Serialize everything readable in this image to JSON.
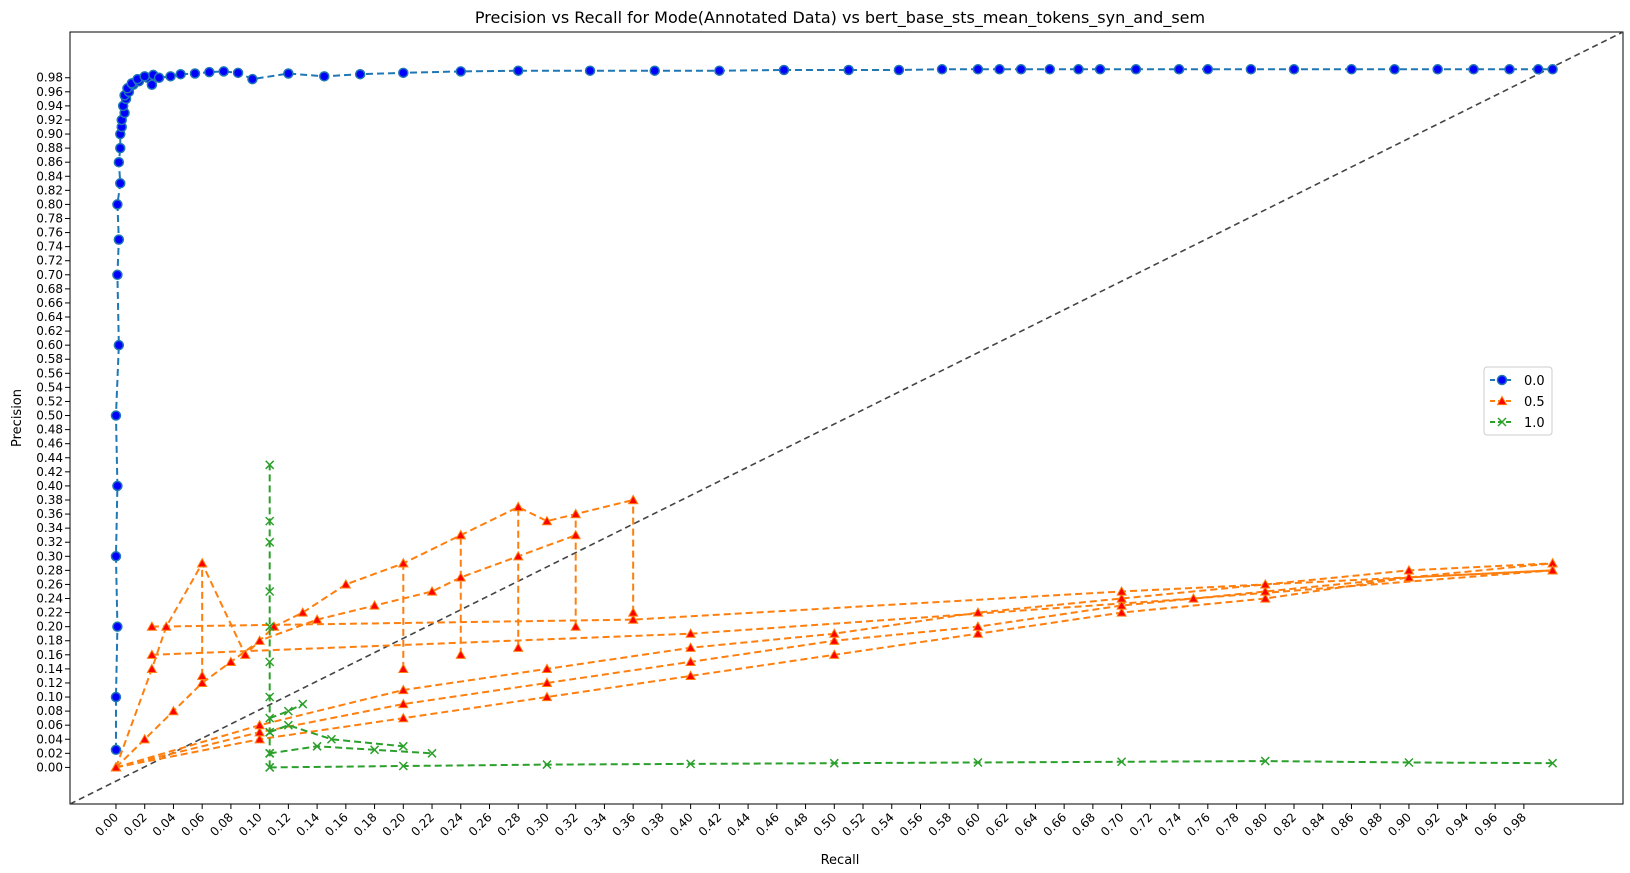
{
  "chart_data": {
    "type": "line",
    "title": "Precision vs Recall for Mode(Annotated Data) vs bert_base_sts_mean_tokens_syn_and_sem",
    "xlabel": "Recall",
    "ylabel": "Precision",
    "xlim": [
      -0.032,
      1.049
    ],
    "ylim": [
      -0.052,
      1.045
    ],
    "xticks": [
      "0.00",
      "0.02",
      "0.04",
      "0.06",
      "0.08",
      "0.10",
      "0.12",
      "0.14",
      "0.16",
      "0.18",
      "0.20",
      "0.22",
      "0.24",
      "0.26",
      "0.28",
      "0.30",
      "0.32",
      "0.34",
      "0.36",
      "0.38",
      "0.40",
      "0.42",
      "0.44",
      "0.46",
      "0.48",
      "0.50",
      "0.52",
      "0.54",
      "0.56",
      "0.58",
      "0.60",
      "0.62",
      "0.64",
      "0.66",
      "0.68",
      "0.70",
      "0.72",
      "0.74",
      "0.76",
      "0.78",
      "0.80",
      "0.82",
      "0.84",
      "0.86",
      "0.88",
      "0.90",
      "0.92",
      "0.94",
      "0.96",
      "0.98"
    ],
    "yticks": [
      "0.00",
      "0.02",
      "0.04",
      "0.06",
      "0.08",
      "0.10",
      "0.12",
      "0.14",
      "0.16",
      "0.18",
      "0.20",
      "0.22",
      "0.24",
      "0.26",
      "0.28",
      "0.30",
      "0.32",
      "0.34",
      "0.36",
      "0.38",
      "0.40",
      "0.42",
      "0.44",
      "0.46",
      "0.48",
      "0.50",
      "0.52",
      "0.54",
      "0.56",
      "0.58",
      "0.60",
      "0.62",
      "0.64",
      "0.66",
      "0.68",
      "0.70",
      "0.72",
      "0.74",
      "0.76",
      "0.78",
      "0.80",
      "0.82",
      "0.84",
      "0.86",
      "0.88",
      "0.90",
      "0.92",
      "0.94",
      "0.96",
      "0.98"
    ],
    "grid": false,
    "legend_position": "right",
    "reference_line": {
      "x": [
        -0.032,
        1.049
      ],
      "y": [
        -0.052,
        1.045
      ],
      "style": "dashed",
      "color": "#444444"
    },
    "series": [
      {
        "name": "0.0",
        "color": "#1f77b4",
        "marker": "circle",
        "marker_face": "#0000ff",
        "x": [
          0.0,
          0.0,
          0.001,
          0.0,
          0.001,
          0.0,
          0.002,
          0.001,
          0.002,
          0.001,
          0.003,
          0.002,
          0.003,
          0.003,
          0.004,
          0.004,
          0.006,
          0.005,
          0.007,
          0.006,
          0.009,
          0.008,
          0.012,
          0.011,
          0.016,
          0.015,
          0.022,
          0.02,
          0.025,
          0.026,
          0.03,
          0.038,
          0.045,
          0.055,
          0.065,
          0.075,
          0.085,
          0.095,
          0.12,
          0.145,
          0.17,
          0.2,
          0.24,
          0.28,
          0.33,
          0.375,
          0.42,
          0.465,
          0.51,
          0.545,
          0.575,
          0.6,
          0.615,
          0.63,
          0.65,
          0.67,
          0.685,
          0.71,
          0.74,
          0.76,
          0.79,
          0.82,
          0.86,
          0.89,
          0.92,
          0.945,
          0.97,
          0.99,
          1.0
        ],
        "y": [
          0.025,
          0.1,
          0.2,
          0.3,
          0.4,
          0.5,
          0.6,
          0.7,
          0.75,
          0.8,
          0.83,
          0.86,
          0.88,
          0.9,
          0.91,
          0.92,
          0.93,
          0.94,
          0.95,
          0.955,
          0.96,
          0.965,
          0.97,
          0.972,
          0.975,
          0.978,
          0.98,
          0.982,
          0.97,
          0.984,
          0.98,
          0.982,
          0.985,
          0.986,
          0.988,
          0.989,
          0.987,
          0.978,
          0.986,
          0.982,
          0.985,
          0.987,
          0.989,
          0.99,
          0.99,
          0.99,
          0.99,
          0.991,
          0.991,
          0.991,
          0.992,
          0.992,
          0.992,
          0.992,
          0.992,
          0.992,
          0.992,
          0.992,
          0.992,
          0.992,
          0.992,
          0.992,
          0.992,
          0.992,
          0.992,
          0.992,
          0.992,
          0.992,
          0.992
        ]
      },
      {
        "name": "0.5",
        "color": "#ff7f0e",
        "marker": "triangle",
        "marker_face": "#ff0000",
        "segments": [
          {
            "x": [
              0.0,
              0.025,
              0.035,
              0.06,
              0.09,
              0.11,
              0.13,
              0.16,
              0.2,
              0.24,
              0.28,
              0.3,
              0.32,
              0.36
            ],
            "y": [
              0.0,
              0.14,
              0.2,
              0.29,
              0.16,
              0.2,
              0.22,
              0.26,
              0.29,
              0.33,
              0.37,
              0.35,
              0.36,
              0.38
            ]
          },
          {
            "x": [
              0.0,
              0.02,
              0.04,
              0.06,
              0.08,
              0.1,
              0.14,
              0.18,
              0.22,
              0.24,
              0.28,
              0.32
            ],
            "y": [
              0.0,
              0.04,
              0.08,
              0.12,
              0.15,
              0.18,
              0.21,
              0.23,
              0.25,
              0.27,
              0.3,
              0.33
            ]
          },
          {
            "x": [
              0.0,
              0.1,
              0.2,
              0.3,
              0.4,
              0.5,
              0.6,
              0.7,
              0.8,
              0.9,
              1.0
            ],
            "y": [
              0.0,
              0.04,
              0.07,
              0.1,
              0.13,
              0.16,
              0.19,
              0.22,
              0.24,
              0.27,
              0.28
            ]
          },
          {
            "x": [
              0.0,
              0.1,
              0.2,
              0.3,
              0.4,
              0.5,
              0.6,
              0.7,
              0.8,
              0.9,
              1.0
            ],
            "y": [
              0.0,
              0.05,
              0.09,
              0.12,
              0.15,
              0.18,
              0.2,
              0.23,
              0.25,
              0.27,
              0.29
            ]
          },
          {
            "x": [
              0.0,
              0.1,
              0.2,
              0.3,
              0.4,
              0.5,
              0.6,
              0.7,
              0.8,
              0.9,
              1.0
            ],
            "y": [
              0.0,
              0.06,
              0.11,
              0.14,
              0.17,
              0.19,
              0.22,
              0.24,
              0.26,
              0.28,
              0.29
            ]
          },
          {
            "x": [
              0.025,
              0.36,
              0.7,
              1.0
            ],
            "y": [
              0.2,
              0.21,
              0.25,
              0.28
            ]
          },
          {
            "x": [
              0.025,
              0.4,
              0.75,
              1.0
            ],
            "y": [
              0.16,
              0.19,
              0.24,
              0.28
            ]
          },
          {
            "x": [
              0.2,
              0.2
            ],
            "y": [
              0.14,
              0.29
            ]
          },
          {
            "x": [
              0.24,
              0.24
            ],
            "y": [
              0.16,
              0.33
            ]
          },
          {
            "x": [
              0.28,
              0.28
            ],
            "y": [
              0.17,
              0.37
            ]
          },
          {
            "x": [
              0.32,
              0.32
            ],
            "y": [
              0.2,
              0.36
            ]
          },
          {
            "x": [
              0.36,
              0.36
            ],
            "y": [
              0.22,
              0.38
            ]
          },
          {
            "x": [
              0.06,
              0.06
            ],
            "y": [
              0.13,
              0.29
            ]
          }
        ]
      },
      {
        "name": "1.0",
        "color": "#2ca02c",
        "marker": "x",
        "marker_face": "#2ca02c",
        "segments": [
          {
            "x": [
              0.107,
              0.107,
              0.107,
              0.107,
              0.107,
              0.107,
              0.107,
              0.107,
              0.107,
              0.107
            ],
            "y": [
              0.0,
              0.02,
              0.05,
              0.1,
              0.15,
              0.2,
              0.25,
              0.32,
              0.35,
              0.43
            ]
          },
          {
            "x": [
              0.107,
              0.2,
              0.3,
              0.4,
              0.5,
              0.6,
              0.7,
              0.8,
              0.9,
              1.0
            ],
            "y": [
              0.0,
              0.002,
              0.004,
              0.005,
              0.006,
              0.007,
              0.008,
              0.009,
              0.007,
              0.006
            ]
          },
          {
            "x": [
              0.107,
              0.14,
              0.18,
              0.22
            ],
            "y": [
              0.02,
              0.03,
              0.025,
              0.02
            ]
          },
          {
            "x": [
              0.107,
              0.12,
              0.15,
              0.2
            ],
            "y": [
              0.05,
              0.06,
              0.04,
              0.03
            ]
          },
          {
            "x": [
              0.107,
              0.12,
              0.13
            ],
            "y": [
              0.07,
              0.08,
              0.09
            ]
          }
        ]
      }
    ]
  }
}
